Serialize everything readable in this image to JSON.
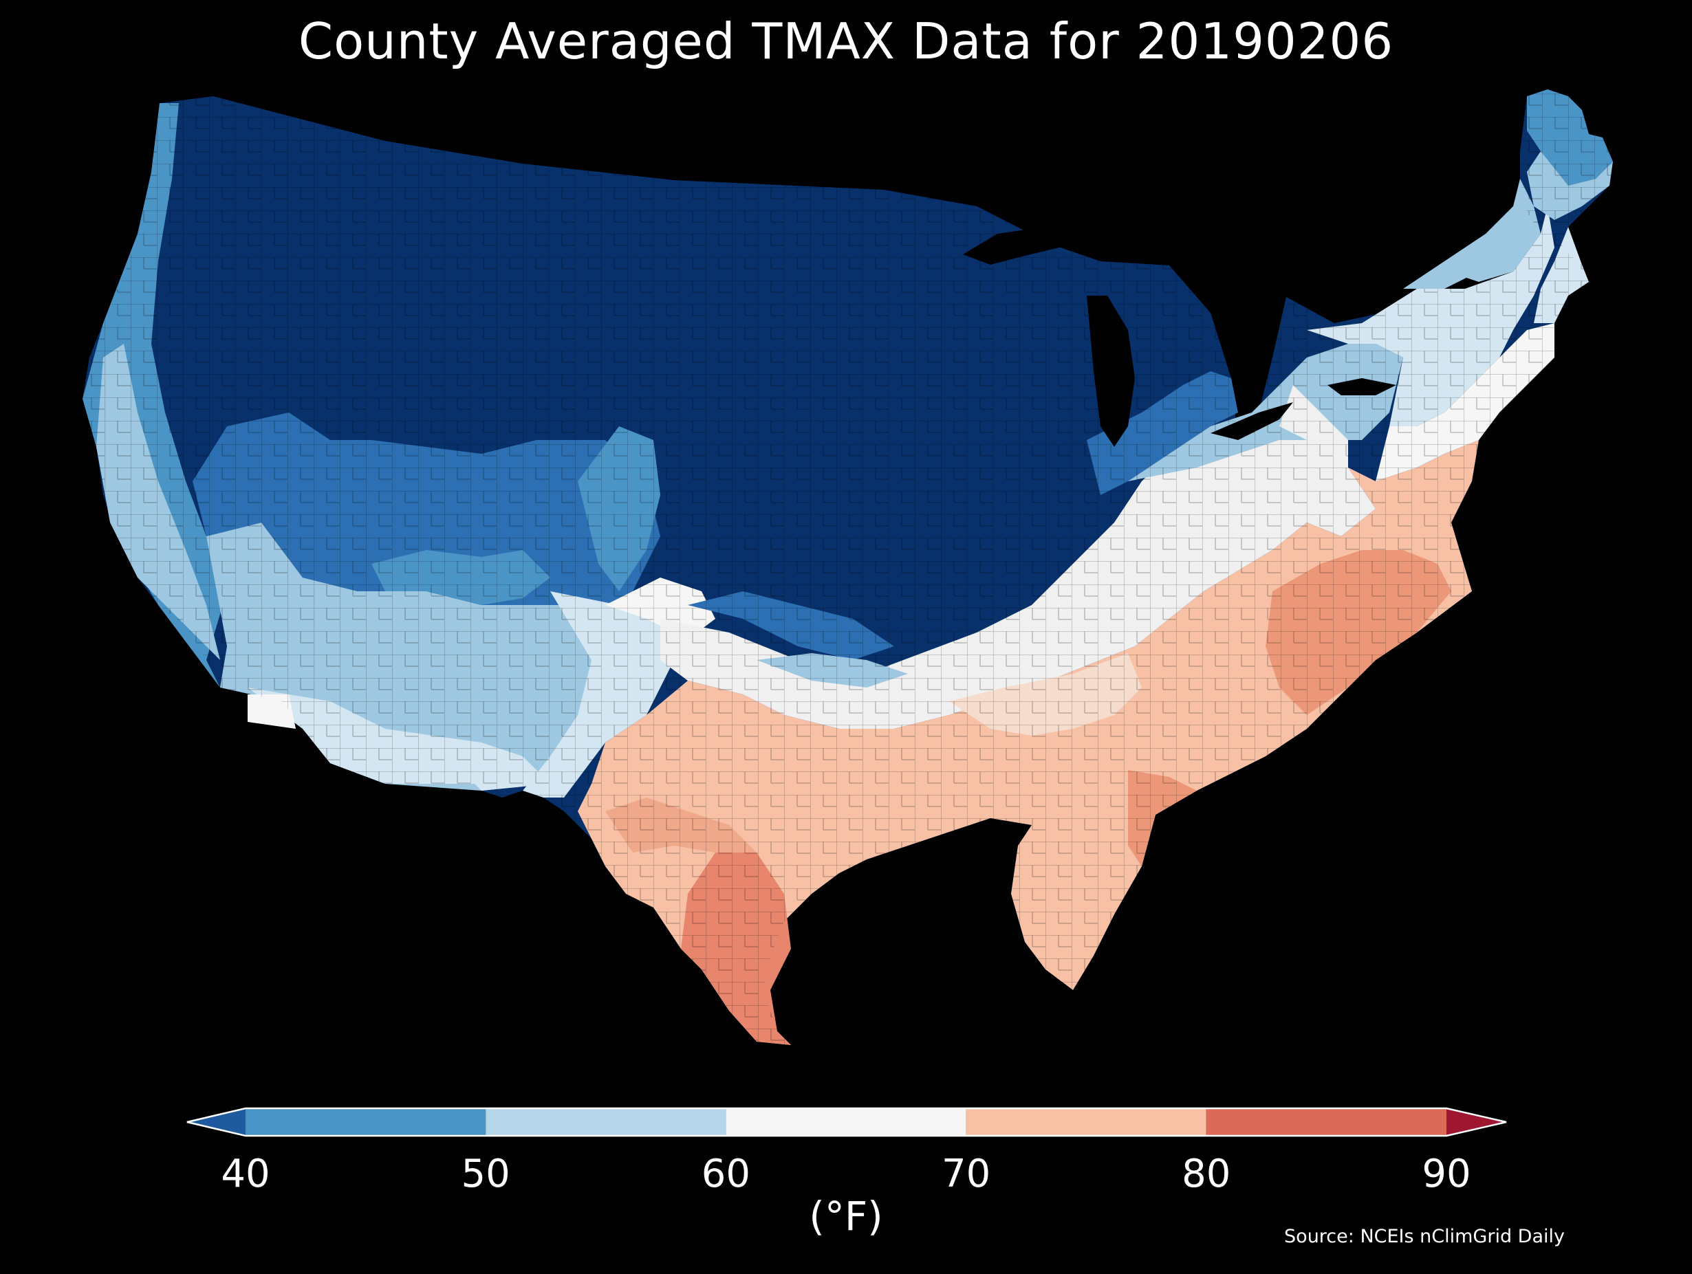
{
  "title": "County Averaged TMAX Data for 20190206",
  "colorbar": {
    "unit_label": "(°F)",
    "ticks": [
      "40",
      "50",
      "60",
      "70",
      "80",
      "90"
    ],
    "bins": [
      {
        "from": 40,
        "to": 50,
        "color": "#4a95c6"
      },
      {
        "from": 50,
        "to": 60,
        "color": "#b5d6ea"
      },
      {
        "from": 60,
        "to": 70,
        "color": "#f6f6f6"
      },
      {
        "from": 70,
        "to": 80,
        "color": "#f8c1a6"
      },
      {
        "from": 80,
        "to": 90,
        "color": "#dc6a59"
      }
    ],
    "under_color": "#1f5a9e",
    "over_color": "#9e1630",
    "extend": "both"
  },
  "source": "Source: NCEIs nClimGrid Daily",
  "map": {
    "region": "Contiguous United States",
    "variable": "TMAX",
    "background": "#000000",
    "colors": {
      "coldest": "#08306b",
      "very_cold": "#0f4a8a",
      "cold": "#2c6fb3",
      "cool": "#4a95c6",
      "mild_cool": "#9ec8e2",
      "neutral": "#f0f0f0",
      "warm": "#f8c1a6",
      "warmer": "#e8866d"
    }
  }
}
